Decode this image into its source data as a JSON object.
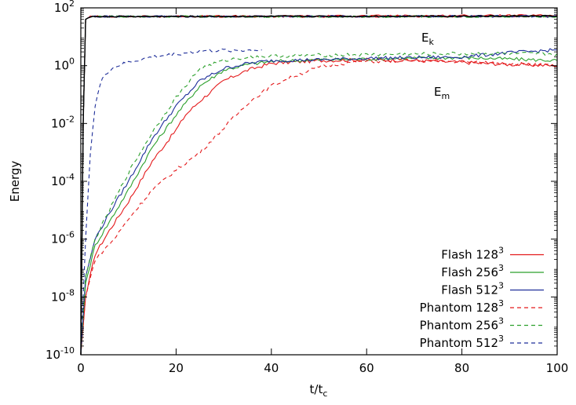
{
  "chart_data": {
    "type": "line",
    "xlabel_main": "t/t",
    "xlabel_sub": "c",
    "ylabel": "Energy",
    "xlim": [
      0,
      100
    ],
    "ylim": [
      1e-10,
      100
    ],
    "yscale": "log",
    "x_ticks": [
      "0",
      "20",
      "40",
      "60",
      "80",
      "100"
    ],
    "y_ticks": [
      {
        "base": "10",
        "exp": "2"
      },
      {
        "base": "10",
        "exp": "0"
      },
      {
        "base": "10",
        "exp": "-2"
      },
      {
        "base": "10",
        "exp": "-4"
      },
      {
        "base": "10",
        "exp": "-6"
      },
      {
        "base": "10",
        "exp": "-8"
      },
      {
        "base": "10",
        "exp": "-10"
      }
    ],
    "annotations": [
      {
        "main": "E",
        "sub": "k"
      },
      {
        "main": "E",
        "sub": "m"
      }
    ],
    "legend_position": "bottom-right",
    "series": [
      {
        "name": "Flash 128",
        "sup": "3",
        "color": "#e41a1c",
        "dash": "solid",
        "ek": [
          [
            0,
            1e-10
          ],
          [
            0.5,
            0.01
          ],
          [
            1,
            40
          ],
          [
            2,
            50
          ],
          [
            100,
            55
          ]
        ],
        "em": [
          [
            0,
            1e-10
          ],
          [
            1,
            1e-08
          ],
          [
            3,
            3e-07
          ],
          [
            6,
            2e-06
          ],
          [
            10,
            2e-05
          ],
          [
            15,
            0.0005
          ],
          [
            20,
            0.006
          ],
          [
            22,
            0.02
          ],
          [
            25,
            0.06
          ],
          [
            30,
            0.3
          ],
          [
            35,
            0.7
          ],
          [
            40,
            1.2
          ],
          [
            50,
            1.5
          ],
          [
            60,
            1.6
          ],
          [
            70,
            1.5
          ],
          [
            80,
            1.3
          ],
          [
            90,
            1.1
          ],
          [
            100,
            1.0
          ]
        ]
      },
      {
        "name": "Flash 256",
        "sup": "3",
        "color": "#2ca02c",
        "dash": "solid",
        "ek": [
          [
            0,
            1e-10
          ],
          [
            0.5,
            0.01
          ],
          [
            1,
            40
          ],
          [
            2,
            50
          ],
          [
            100,
            50
          ]
        ],
        "em": [
          [
            0,
            1e-10
          ],
          [
            1,
            3e-08
          ],
          [
            3,
            6e-07
          ],
          [
            6,
            4e-06
          ],
          [
            10,
            5e-05
          ],
          [
            15,
            0.0015
          ],
          [
            20,
            0.02
          ],
          [
            25,
            0.2
          ],
          [
            30,
            0.7
          ],
          [
            35,
            1.1
          ],
          [
            40,
            1.4
          ],
          [
            50,
            1.6
          ],
          [
            60,
            1.7
          ],
          [
            70,
            1.8
          ],
          [
            80,
            1.9
          ],
          [
            90,
            1.7
          ],
          [
            100,
            1.5
          ]
        ]
      },
      {
        "name": "Flash 512",
        "sup": "3",
        "color": "#1f2f9a",
        "dash": "solid",
        "ek": [
          [
            0,
            1e-10
          ],
          [
            0.5,
            0.01
          ],
          [
            1,
            40
          ],
          [
            2,
            50
          ],
          [
            100,
            52
          ]
        ],
        "em": [
          [
            0,
            1e-10
          ],
          [
            1,
            5e-08
          ],
          [
            3,
            1e-06
          ],
          [
            6,
            8e-06
          ],
          [
            10,
            0.0001
          ],
          [
            15,
            0.003
          ],
          [
            20,
            0.04
          ],
          [
            25,
            0.3
          ],
          [
            30,
            0.8
          ],
          [
            35,
            1.2
          ],
          [
            40,
            1.5
          ],
          [
            50,
            1.6
          ],
          [
            60,
            1.8
          ],
          [
            70,
            1.9
          ],
          [
            80,
            2.0
          ],
          [
            90,
            2.8
          ],
          [
            100,
            3.5
          ]
        ]
      },
      {
        "name": "Phantom 128",
        "sup": "3",
        "color": "#e41a1c",
        "dash": "dashed",
        "ek": [
          [
            0,
            1e-10
          ],
          [
            0.5,
            0.01
          ],
          [
            1,
            40
          ],
          [
            2,
            50
          ],
          [
            100,
            50
          ]
        ],
        "em": [
          [
            0,
            1e-10
          ],
          [
            1,
            1e-08
          ],
          [
            3,
            2e-07
          ],
          [
            7,
            1e-06
          ],
          [
            10,
            5e-06
          ],
          [
            15,
            5e-05
          ],
          [
            20,
            0.00025
          ],
          [
            25,
            0.001
          ],
          [
            30,
            0.007
          ],
          [
            35,
            0.05
          ],
          [
            40,
            0.2
          ],
          [
            45,
            0.45
          ],
          [
            50,
            0.9
          ],
          [
            55,
            1.2
          ],
          [
            60,
            1.4
          ],
          [
            70,
            1.5
          ],
          [
            80,
            1.4
          ],
          [
            90,
            1.2
          ],
          [
            100,
            1.0
          ]
        ]
      },
      {
        "name": "Phantom 256",
        "sup": "3",
        "color": "#2ca02c",
        "dash": "dashed",
        "ek": [
          [
            0,
            1e-10
          ],
          [
            0.5,
            0.01
          ],
          [
            1,
            40
          ],
          [
            2,
            50
          ],
          [
            100,
            50
          ]
        ],
        "em": [
          [
            0,
            1e-10
          ],
          [
            1,
            5e-08
          ],
          [
            3,
            1e-06
          ],
          [
            6,
            1e-05
          ],
          [
            10,
            0.0002
          ],
          [
            15,
            0.005
          ],
          [
            20,
            0.08
          ],
          [
            25,
            0.8
          ],
          [
            30,
            1.5
          ],
          [
            35,
            2
          ],
          [
            40,
            2.1
          ],
          [
            50,
            2.3
          ],
          [
            60,
            2.4
          ],
          [
            70,
            2.5
          ],
          [
            80,
            2.6
          ],
          [
            90,
            2.6
          ],
          [
            100,
            2.5
          ]
        ]
      },
      {
        "name": "Phantom 512",
        "sup": "3",
        "color": "#1f2f9a",
        "dash": "dashed",
        "ek": [
          [
            0,
            1e-10
          ],
          [
            0.5,
            0.01
          ],
          [
            1,
            40
          ],
          [
            2,
            50
          ],
          [
            100,
            50
          ]
        ],
        "em": [
          [
            0,
            1e-10
          ],
          [
            1,
            1e-06
          ],
          [
            2,
            0.001
          ],
          [
            3,
            0.04
          ],
          [
            4,
            0.2
          ],
          [
            5,
            0.5
          ],
          [
            7,
            0.9
          ],
          [
            10,
            1.3
          ],
          [
            15,
            2
          ],
          [
            20,
            2.5
          ],
          [
            25,
            3.2
          ],
          [
            30,
            3.4
          ],
          [
            35,
            3.4
          ],
          [
            38,
            3.5
          ]
        ]
      }
    ]
  }
}
